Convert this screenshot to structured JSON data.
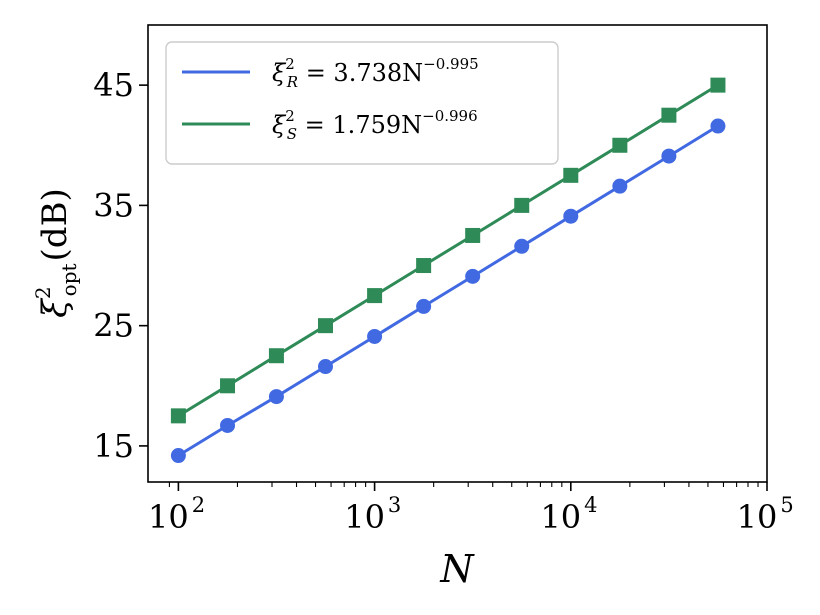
{
  "chart_data": {
    "type": "line",
    "xscale": "log",
    "xlim": [
      70,
      100000
    ],
    "ylim": [
      12,
      50
    ],
    "xlabel": "N",
    "ylabel": "ξ²opt (dB)",
    "ylabel_parts": {
      "base": "ξ",
      "sup": "2",
      "sub": "opt",
      "unit": "(dB)"
    },
    "yticks": [
      15,
      25,
      35,
      45
    ],
    "xticks": [
      {
        "value": 100,
        "base": "10",
        "exp": "2"
      },
      {
        "value": 1000,
        "base": "10",
        "exp": "3"
      },
      {
        "value": 10000,
        "base": "10",
        "exp": "4"
      },
      {
        "value": 100000,
        "base": "10",
        "exp": "5"
      }
    ],
    "legend_position": "top-left",
    "grid": false,
    "series": [
      {
        "name": "ξ²R = 3.738N^−0.995",
        "legend": {
          "sym": "ξ",
          "sup": "2",
          "sub": "R",
          "rhs": " = 3.738N",
          "exp": "−0.995"
        },
        "color": "#4169E1",
        "marker": "circle",
        "x": [
          100,
          178,
          316,
          562,
          1000,
          1778,
          3162,
          5623,
          10000,
          17783,
          31623,
          56234
        ],
        "y": [
          14.2,
          16.7,
          19.1,
          21.6,
          24.1,
          26.6,
          29.1,
          31.6,
          34.1,
          36.6,
          39.1,
          41.6
        ]
      },
      {
        "name": "ξ²S = 1.759N^−0.996",
        "legend": {
          "sym": "ξ",
          "sup": "2",
          "sub": "S",
          "rhs": " = 1.759N",
          "exp": "−0.996"
        },
        "color": "#2E8B57",
        "marker": "square",
        "x": [
          100,
          178,
          316,
          562,
          1000,
          1778,
          3162,
          5623,
          10000,
          17783,
          31623,
          56234
        ],
        "y": [
          17.5,
          20.0,
          22.5,
          25.0,
          27.5,
          30.0,
          32.5,
          35.0,
          37.5,
          40.0,
          42.5,
          45.0
        ]
      }
    ]
  }
}
